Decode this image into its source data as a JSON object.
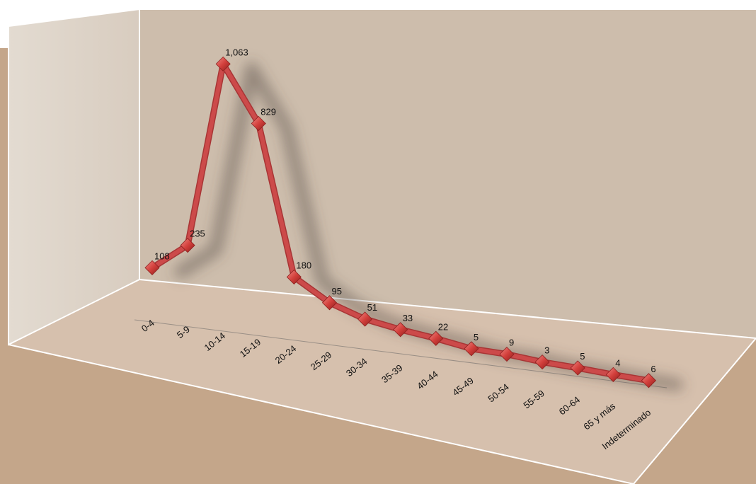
{
  "chart_data": {
    "type": "line",
    "categories": [
      "0-4",
      "5-9",
      "10-14",
      "15-19",
      "20-24",
      "25-29",
      "30-34",
      "35-39",
      "40-44",
      "45-49",
      "50-54",
      "55-59",
      "60-64",
      "65 y más",
      "Indeterminado"
    ],
    "values": [
      108,
      235,
      1063,
      829,
      180,
      95,
      51,
      33,
      22,
      5,
      9,
      3,
      5,
      4,
      6
    ],
    "value_labels": [
      "108",
      "235",
      "1,063",
      "829",
      "180",
      "95",
      "51",
      "33",
      "22",
      "5",
      "9",
      "3",
      "5",
      "4",
      "6"
    ],
    "style": "3d-line",
    "marker": "diamond",
    "legend": "none",
    "gridlines": false
  },
  "colors": {
    "line": "#cc4a4a",
    "marker": "#c8302f",
    "background": "#c4a68a",
    "back_wall": "#cdbdac",
    "side_wall": "#ddd2c6",
    "floor": "#d6c0ad"
  }
}
